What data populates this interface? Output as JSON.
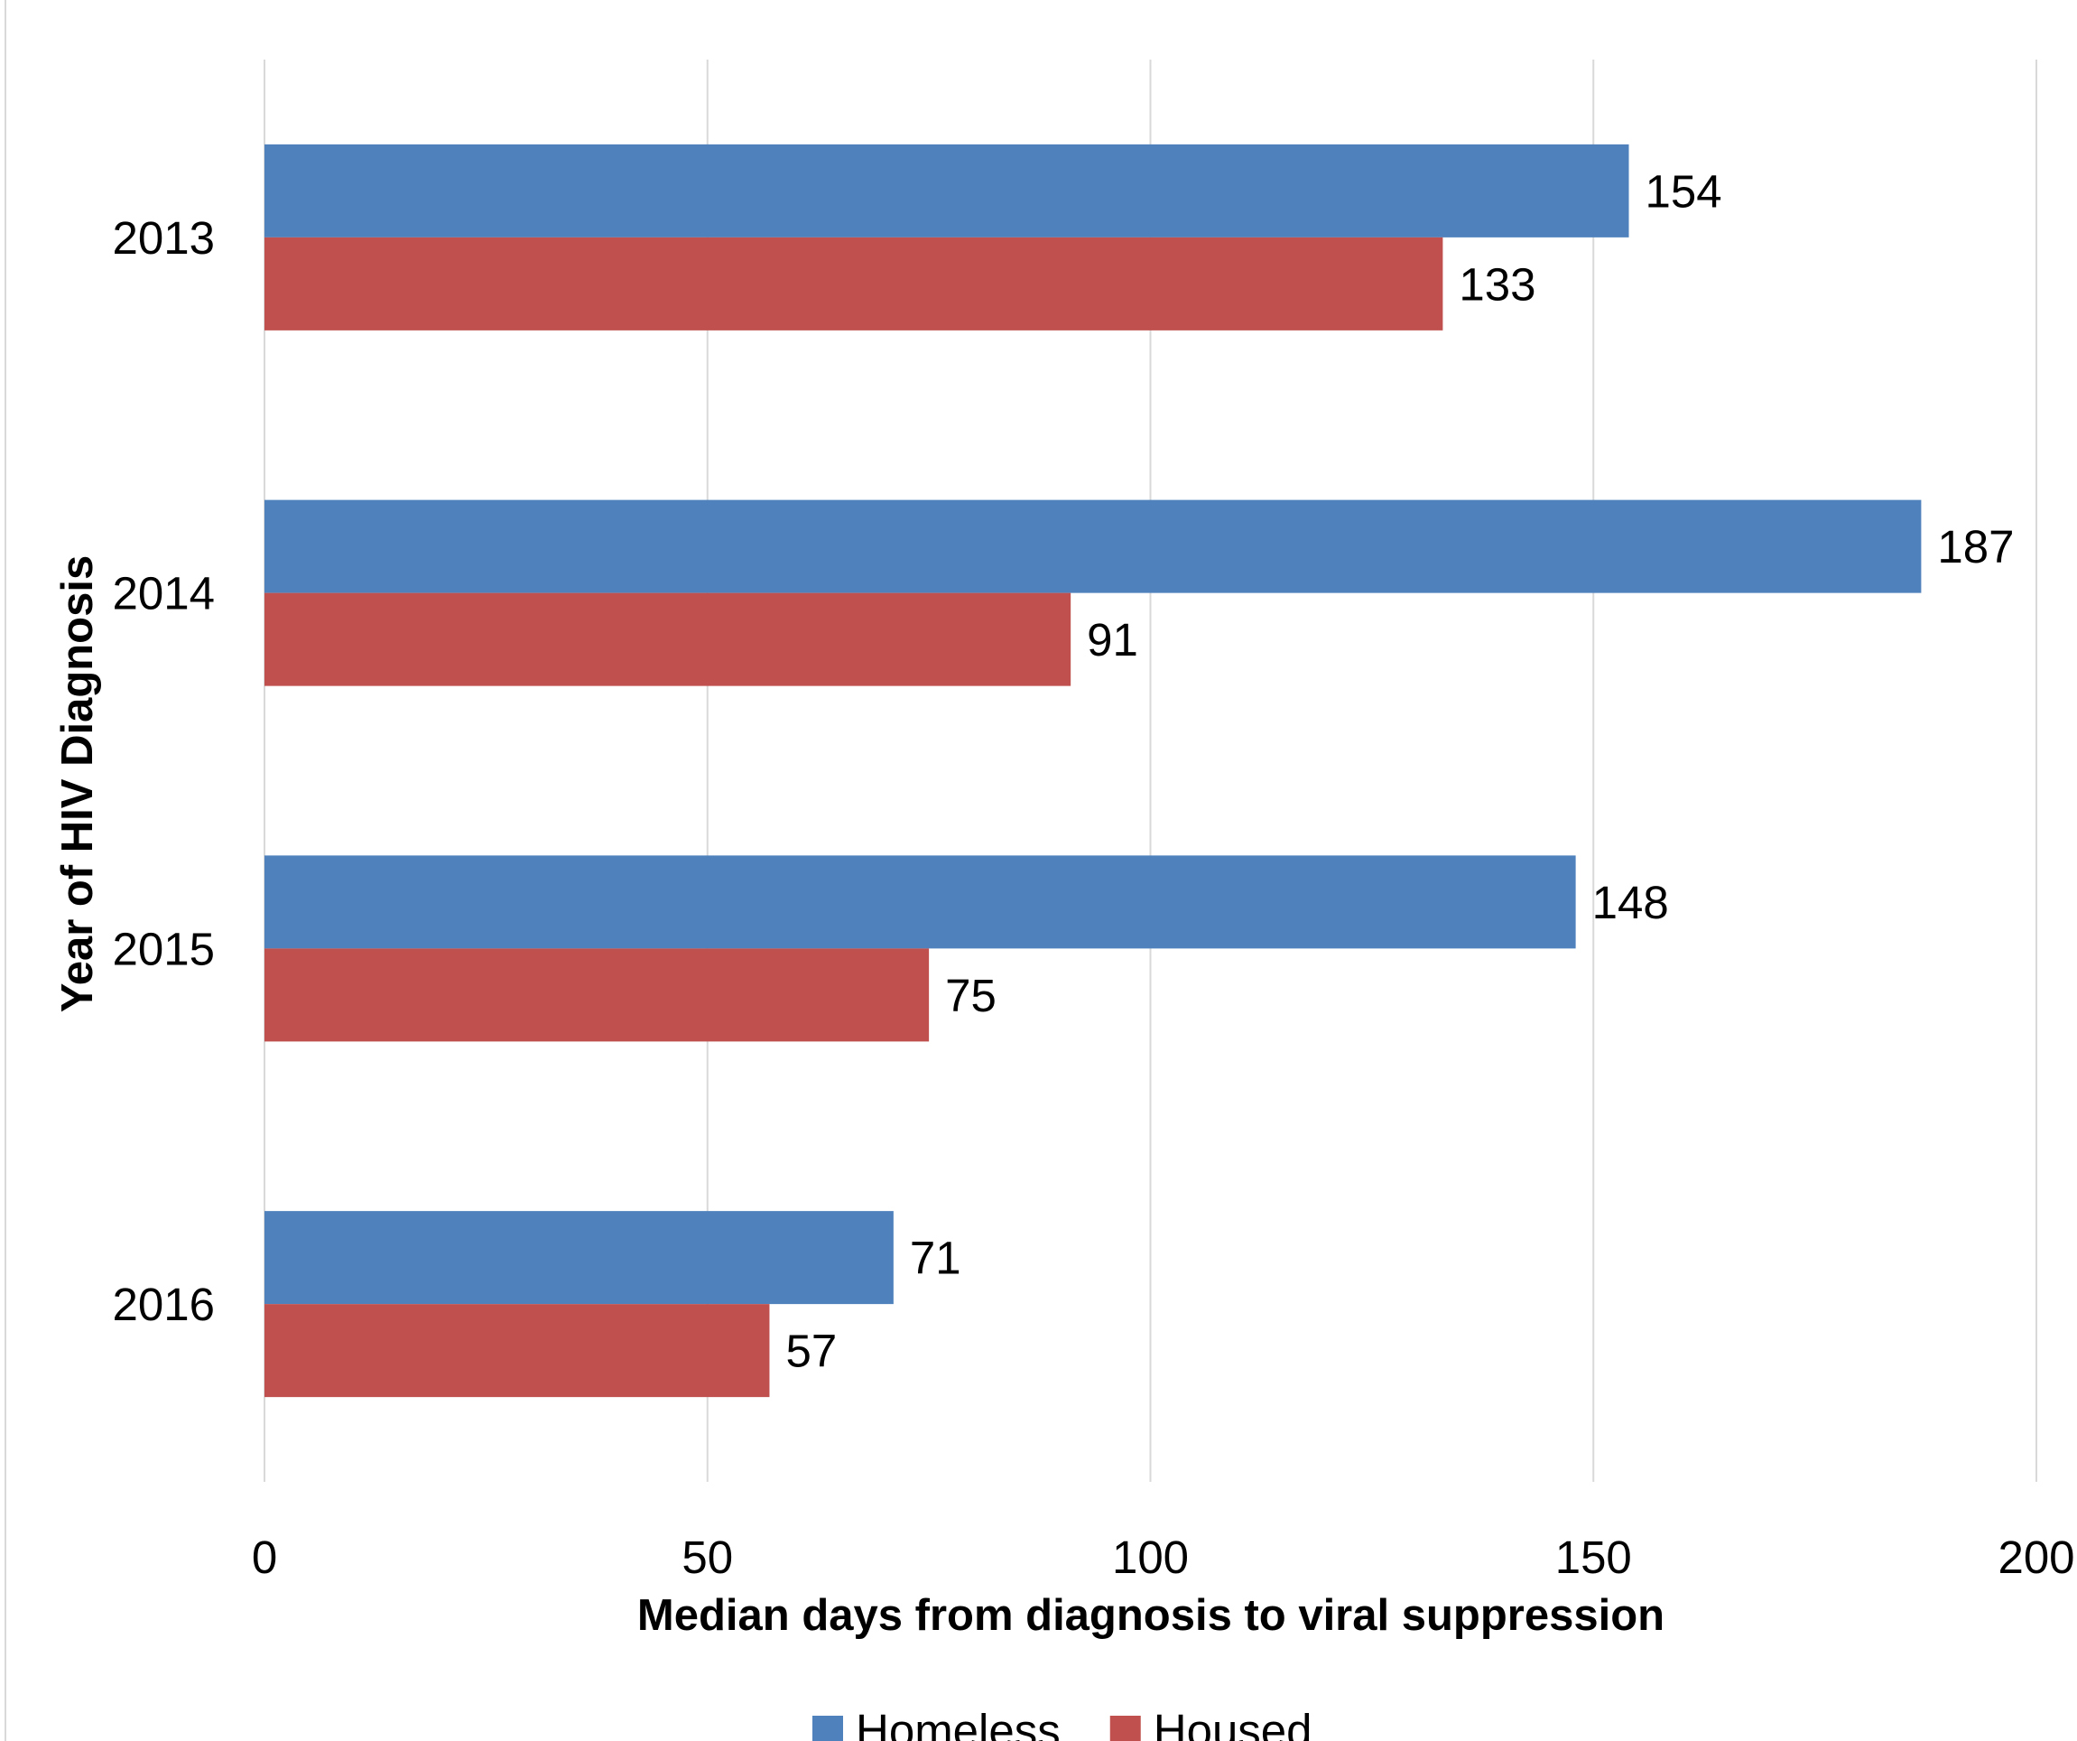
{
  "chart_data": {
    "type": "bar",
    "orientation": "horizontal",
    "title": "",
    "xlabel": "Median days from diagnosis to viral suppression",
    "ylabel": "Year of HIV Diagnosis",
    "categories": [
      "2013",
      "2014",
      "2015",
      "2016"
    ],
    "series": [
      {
        "name": "Homeless",
        "color": "#4f81bd",
        "values": [
          154,
          187,
          148,
          71
        ]
      },
      {
        "name": "Housed",
        "color": "#c0504d",
        "values": [
          133,
          91,
          75,
          57
        ]
      }
    ],
    "xlim": [
      0,
      200
    ],
    "xticks": [
      0,
      50,
      100,
      150,
      200
    ],
    "grid": "vertical",
    "legend": "bottom-center",
    "data_labels": true
  }
}
